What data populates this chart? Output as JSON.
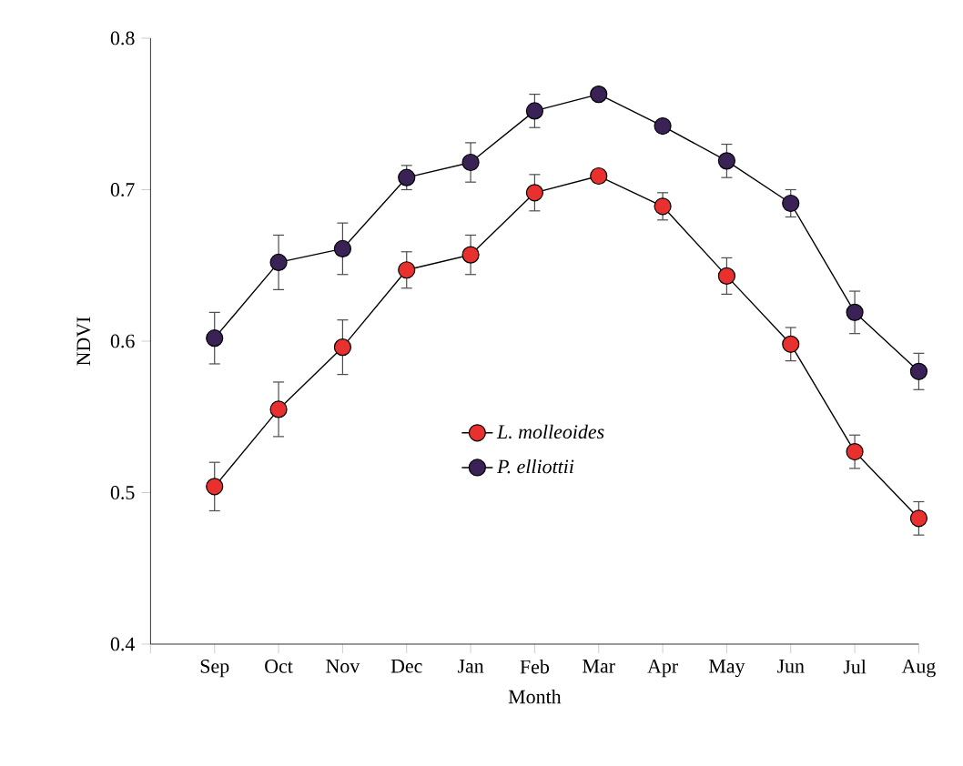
{
  "chart_data": {
    "type": "line",
    "xlabel": "Month",
    "ylabel": "NDVI",
    "categories": [
      "Sep",
      "Oct",
      "Nov",
      "Dec",
      "Jan",
      "Feb",
      "Mar",
      "Apr",
      "May",
      "Jun",
      "Jul",
      "Aug"
    ],
    "series": [
      {
        "name": "*L. molleoides*",
        "color": "#e8302f",
        "values": [
          0.504,
          0.555,
          0.596,
          0.647,
          0.657,
          0.698,
          0.709,
          0.689,
          0.643,
          0.598,
          0.527,
          0.483
        ],
        "errors": [
          0.016,
          0.018,
          0.018,
          0.012,
          0.013,
          0.012,
          0.004,
          0.009,
          0.012,
          0.011,
          0.011,
          0.011
        ]
      },
      {
        "name": "*P. elliottii*",
        "color": "#3b2256",
        "values": [
          0.602,
          0.652,
          0.661,
          0.708,
          0.718,
          0.752,
          0.763,
          0.742,
          0.719,
          0.691,
          0.619,
          0.58
        ],
        "errors": [
          0.017,
          0.018,
          0.017,
          0.008,
          0.013,
          0.011,
          0.004,
          0.004,
          0.011,
          0.009,
          0.014,
          0.012
        ]
      }
    ],
    "ylim": [
      0.4,
      0.8
    ],
    "yticks": [
      0.4,
      0.5,
      0.6,
      0.7,
      0.8
    ],
    "grid": false,
    "legend": "center",
    "marker": "circle",
    "line_style": "solid"
  }
}
